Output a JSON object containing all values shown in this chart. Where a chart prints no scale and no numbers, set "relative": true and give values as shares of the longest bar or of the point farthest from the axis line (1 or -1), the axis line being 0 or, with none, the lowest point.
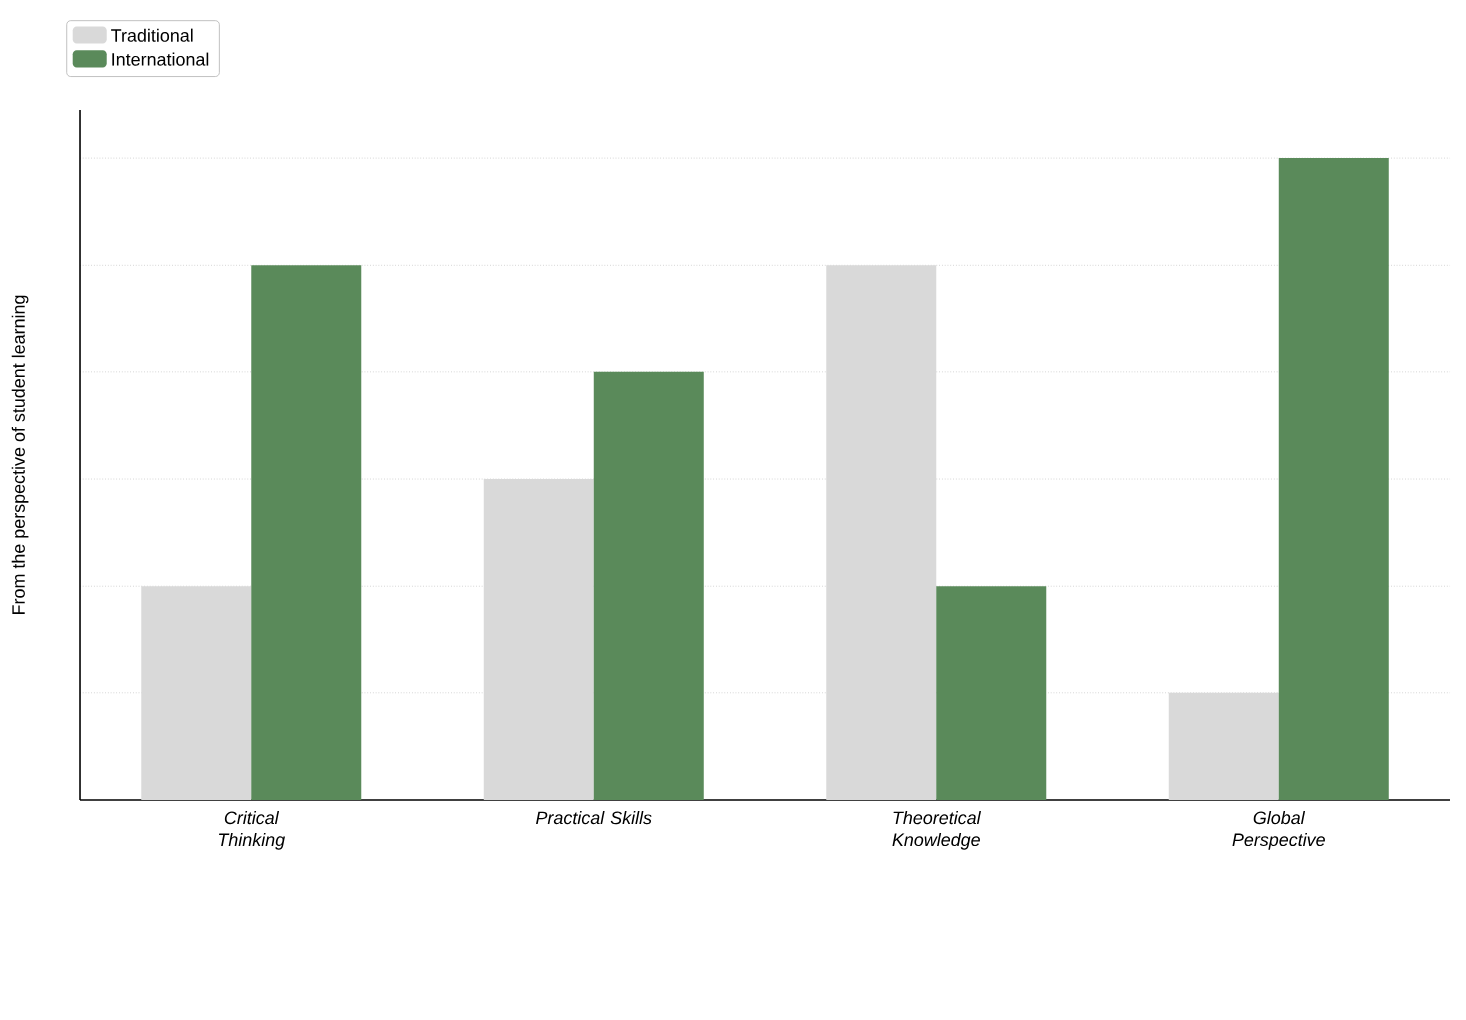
{
  "chart_data": {
    "type": "bar",
    "ylabel": "From the perspective of student learning",
    "categories": [
      "Critical Thinking",
      "Practical Skills",
      "Theoretical Knowledge",
      "Global Perspective"
    ],
    "relative": true,
    "grid": "y",
    "legend": "top left",
    "series": [
      {
        "name": "Traditional",
        "color": "#d9d9d9",
        "values": [
          0.333,
          0.5,
          0.833,
          0.167
        ]
      },
      {
        "name": "International",
        "color": "#5a8a5a",
        "values": [
          0.833,
          0.667,
          0.333,
          1
        ]
      }
    ]
  }
}
